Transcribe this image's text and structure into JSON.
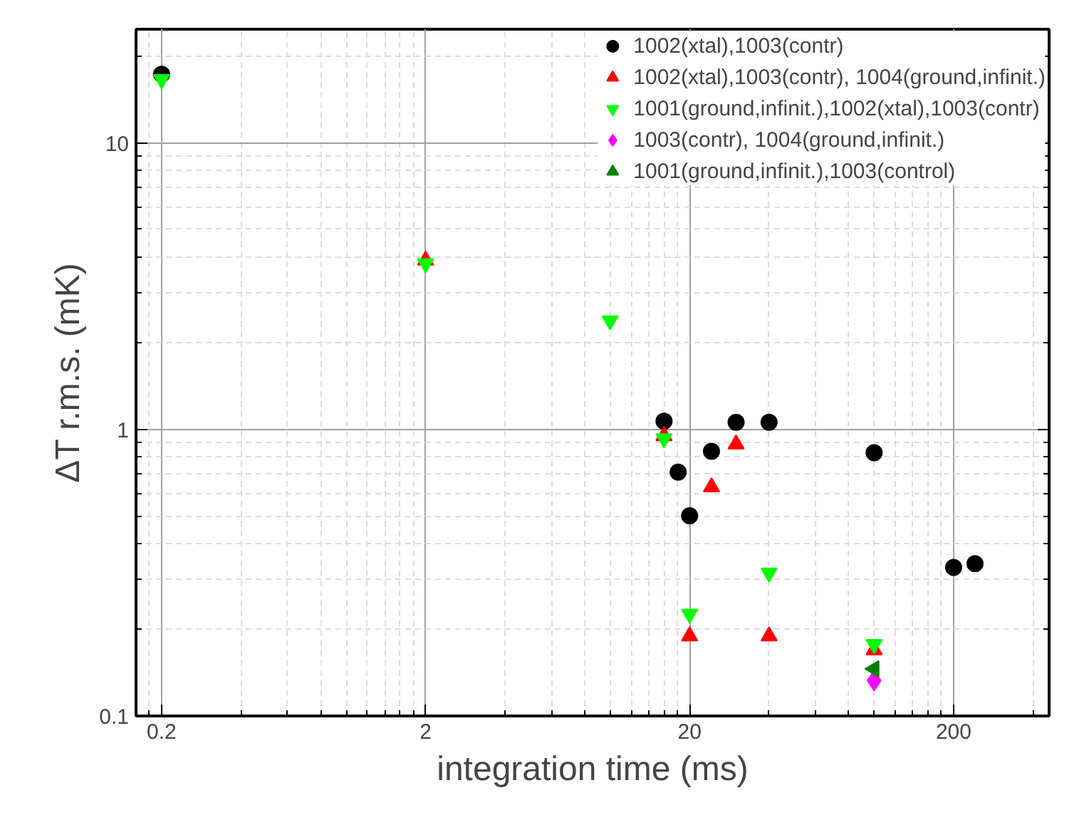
{
  "chart_data": {
    "type": "scatter",
    "xlabel": "integration time (ms)",
    "ylabel": "ΔT r.m.s. (mK)",
    "log": "xy",
    "xlim": [
      0.16,
      460
    ],
    "ylim": [
      0.1,
      25
    ],
    "xticks": [
      0.2,
      2,
      20,
      200
    ],
    "yticks": [
      0.1,
      1,
      10
    ],
    "grid": true,
    "legend": "top right",
    "series": [
      {
        "name": "1002(xtal),1003(contr)",
        "color": "#000000",
        "marker": "circle",
        "x": [
          0.2,
          16,
          18.1,
          20,
          24.2,
          30,
          40,
          100,
          200,
          241
        ],
        "values": [
          17.4,
          1.07,
          0.71,
          0.5,
          0.84,
          1.06,
          1.06,
          0.83,
          0.33,
          0.34
        ]
      },
      {
        "name": "1002(xtal),1003(contr), 1004(ground,infinit.)",
        "color": "#ff0000",
        "marker": "triangle",
        "x": [
          2,
          16,
          20,
          24.2,
          30,
          40,
          100
        ],
        "values": [
          3.9,
          0.95,
          0.19,
          0.63,
          0.89,
          0.19,
          0.17
        ]
      },
      {
        "name": "1001(ground,infinit.),1002(xtal),1003(contr)",
        "color": "#00ff00",
        "x": [
          0.2,
          2,
          10,
          16,
          20,
          40,
          100
        ],
        "values": [
          16.7,
          3.8,
          2.4,
          0.93,
          0.227,
          0.316,
          0.178
        ]
      },
      {
        "name": "1003(contr), 1004(ground,infinit.)",
        "color": "#ff00ff",
        "marker": "diamond",
        "x": [
          100
        ],
        "values": [
          0.133
        ]
      },
      {
        "name": "1001(ground,infinit.),1003(control)",
        "color": "#008000",
        "x": [
          100
        ],
        "values": [
          0.146
        ]
      }
    ]
  }
}
